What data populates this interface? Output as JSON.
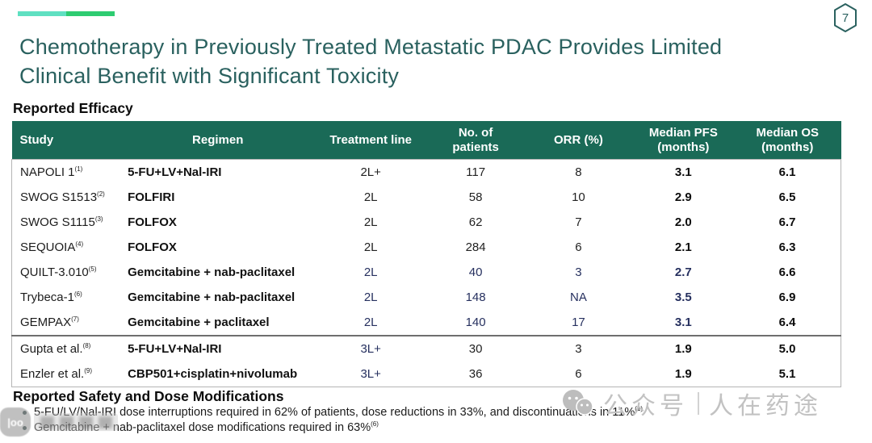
{
  "page": {
    "number": "7"
  },
  "header": {
    "title_line1": "Chemotherapy in Previously Treated Metastatic PDAC Provides Limited",
    "title_line2": "Clinical Benefit with Significant Toxicity"
  },
  "efficacy": {
    "heading": "Reported Efficacy",
    "table": {
      "columns": [
        "Study",
        "Regimen",
        "Treatment line",
        "No. of\npatients",
        "ORR (%)",
        "Median PFS\n(months)",
        "Median OS\n(months)"
      ],
      "rows": [
        {
          "study": "NAPOLI 1",
          "ref": "1",
          "regimen": "5-FU+LV+Nal-IRI",
          "line": "2L+",
          "patients": "117",
          "orr": "8",
          "pfs": "3.1",
          "os": "6.1",
          "accent_cols": [],
          "section_start": false
        },
        {
          "study": "SWOG S1513",
          "ref": "2",
          "regimen": "FOLFIRI",
          "line": "2L",
          "patients": "58",
          "orr": "10",
          "pfs": "2.9",
          "os": "6.5",
          "accent_cols": [],
          "section_start": false
        },
        {
          "study": "SWOG S1115",
          "ref": "3",
          "regimen": "FOLFOX",
          "line": "2L",
          "patients": "62",
          "orr": "7",
          "pfs": "2.0",
          "os": "6.7",
          "accent_cols": [],
          "section_start": false
        },
        {
          "study": "SEQUOIA",
          "ref": "4",
          "regimen": "FOLFOX",
          "line": "2L",
          "patients": "284",
          "orr": "6",
          "pfs": "2.1",
          "os": "6.3",
          "accent_cols": [],
          "section_start": false
        },
        {
          "study": "QUILT-3.010",
          "ref": "5",
          "regimen": "Gemcitabine + nab-paclitaxel",
          "line": "2L",
          "patients": "40",
          "orr": "3",
          "pfs": "2.7",
          "os": "6.6",
          "accent_cols": [
            "line",
            "patients",
            "orr",
            "pfs"
          ],
          "section_start": false
        },
        {
          "study": "Trybeca-1",
          "ref": "6",
          "regimen": "Gemcitabine + nab-paclitaxel",
          "line": "2L",
          "patients": "148",
          "orr": "NA",
          "pfs": "3.5",
          "os": "6.9",
          "accent_cols": [
            "line",
            "patients",
            "orr",
            "pfs"
          ],
          "section_start": false
        },
        {
          "study": "GEMPAX",
          "ref": "7",
          "regimen": "Gemcitabine + paclitaxel",
          "line": "2L",
          "patients": "140",
          "orr": "17",
          "pfs": "3.1",
          "os": "6.4",
          "accent_cols": [
            "line",
            "patients",
            "orr",
            "pfs"
          ],
          "section_start": false
        },
        {
          "study": "Gupta et al.",
          "ref": "8",
          "regimen": "5-FU+LV+Nal-IRI",
          "line": "3L+",
          "patients": "30",
          "orr": "3",
          "pfs": "1.9",
          "os": "5.0",
          "accent_cols": [
            "line"
          ],
          "section_start": true
        },
        {
          "study": "Enzler et al.",
          "ref": "9",
          "regimen": "CBP501+cisplatin+nivolumab",
          "line": "3L+",
          "patients": "36",
          "orr": "6",
          "pfs": "1.9",
          "os": "5.1",
          "accent_cols": [
            "line"
          ],
          "section_start": false
        }
      ]
    }
  },
  "safety": {
    "heading": "Reported Safety and Dose Modifications",
    "bullets": [
      {
        "text": "5-FU/LV/Nal-IRI dose interruptions required in 62% of patients, dose reductions in 33%, and discontinuations in 11%",
        "ref": "1"
      },
      {
        "text": "Gemcitabine + nab-paclitaxel dose modifications required in 63%",
        "ref": "6"
      }
    ]
  },
  "watermark": {
    "wechat_label_left": "公众号",
    "wechat_label_right": "人在药途"
  },
  "colors": {
    "title_teal": "#2a615f",
    "table_header_green": "#1a6a57",
    "accent_mint": "#5fe0c1",
    "accent_green": "#2ecc71",
    "accent_navy": "#26305f",
    "watermark_gray": "#c2c2c2"
  }
}
